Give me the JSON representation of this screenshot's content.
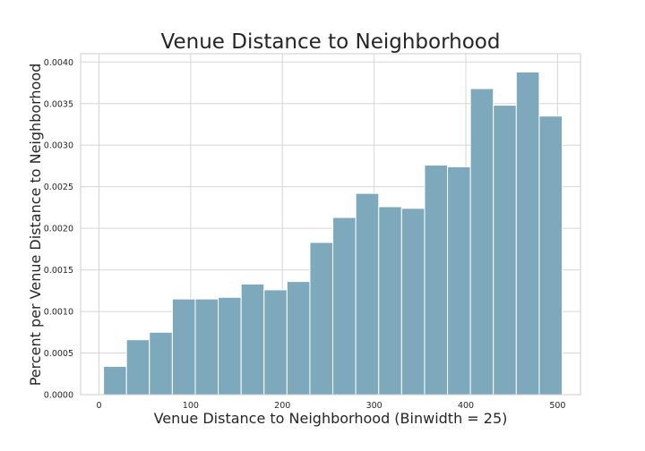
{
  "chart_data": {
    "type": "bar",
    "title": "Venue Distance to Neighborhood",
    "xlabel": "Venue Distance to Neighborhood (Binwidth = 25)",
    "ylabel": "Percent per Venue Distance to Neighborhood",
    "bin_width": 25,
    "bin_starts": [
      5,
      30,
      55,
      80,
      105,
      130,
      155,
      180,
      205,
      230,
      255,
      280,
      305,
      330,
      355,
      380,
      405,
      430,
      455,
      480
    ],
    "values": [
      0.00034,
      0.00066,
      0.00075,
      0.00115,
      0.00115,
      0.00117,
      0.00133,
      0.00126,
      0.00136,
      0.00183,
      0.00213,
      0.00242,
      0.00226,
      0.00224,
      0.00276,
      0.00274,
      0.00368,
      0.00348,
      0.00388,
      0.00335
    ],
    "xlim": [
      -20,
      525
    ],
    "ylim": [
      0,
      0.0041
    ],
    "x_ticks": [
      0,
      100,
      200,
      300,
      400,
      500
    ],
    "x_tick_labels": [
      "0",
      "100",
      "200",
      "300",
      "400",
      "500"
    ],
    "y_ticks": [
      0,
      0.0005,
      0.001,
      0.0015,
      0.002,
      0.0025,
      0.003,
      0.0035,
      0.004
    ],
    "y_tick_labels": [
      "0.0000",
      "0.0005",
      "0.0010",
      "0.0015",
      "0.0020",
      "0.0025",
      "0.0030",
      "0.0035",
      "0.0040"
    ],
    "grid": true,
    "bar_color": "#7ea9bc"
  }
}
